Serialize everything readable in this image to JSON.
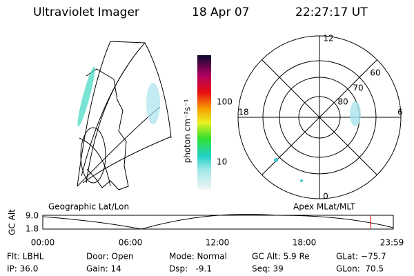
{
  "header": {
    "title": "Ultraviolet Imager",
    "date": "18 Apr 07",
    "time": "22:27:17 UT"
  },
  "colorbar": {
    "label": "photon cm⁻²s⁻¹",
    "ticks": [
      "100",
      "10"
    ]
  },
  "polar": {
    "mlt_labels": [
      "12",
      "18",
      "6",
      "0"
    ],
    "lat_labels": [
      "60",
      "70",
      "80"
    ]
  },
  "panels": {
    "left": "Geographic Lat/Lon",
    "right": "Apex MLat/MLT"
  },
  "altitude": {
    "axis_label": "GC Alt",
    "yticks": [
      "9.0",
      "1.8"
    ],
    "xticks": [
      "00:00",
      "06:00",
      "12:00",
      "18:00",
      "23:59"
    ]
  },
  "status": [
    [
      "Flt: LBHL",
      "Door: Open",
      "Mode: Normal",
      "GC Alt: 5.9 Re",
      "GLat: −75.7"
    ],
    [
      "IP: 36.0",
      "Gain: 14",
      "Dsp:   -9.1",
      "Seq: 39",
      "GLon:  70.5"
    ]
  ]
}
